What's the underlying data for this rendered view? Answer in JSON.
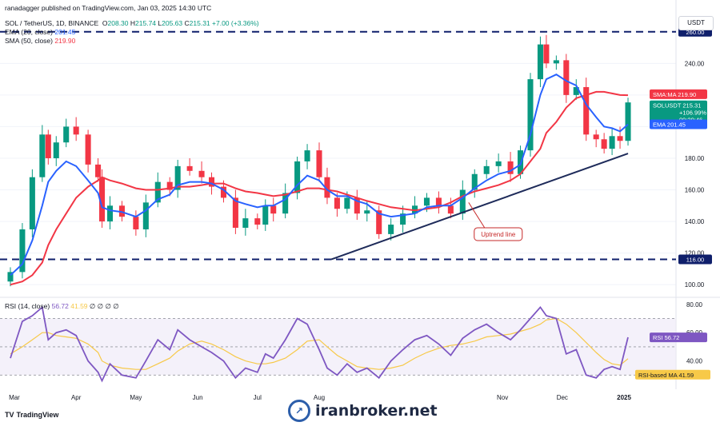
{
  "header": {
    "published": "ranadagger published on TradingView.com, Jan 03, 2025 14:30 UTC",
    "symbol": "SOL / TetherUS, 1D, BINANCE",
    "ohlc_o_label": "O",
    "ohlc_o": "208.30",
    "ohlc_h_label": "H",
    "ohlc_h": "215.74",
    "ohlc_l_label": "L",
    "ohlc_l": "205.63",
    "ohlc_c_label": "C",
    "ohlc_c": "215.31",
    "change": "+7.00 (+3.36%)",
    "ema_label": "EMA (20, close)",
    "ema_value": "201.45",
    "sma_label": "SMA (50, close)",
    "sma_value": "219.90",
    "rsi_label": "RSI (14, close)",
    "rsi_value": "56.72",
    "rsi_ma_value": "41.59",
    "rsi_rest": "∅ ∅ ∅ ∅"
  },
  "currency_badge": "USDT",
  "branding": {
    "tradingview": "TradingView",
    "watermark": "iranbroker.net"
  },
  "colors": {
    "up": "#089981",
    "down": "#f23645",
    "ema": "#2962ff",
    "sma": "#f23645",
    "rsi": "#7e57c2",
    "trendline": "#1e2b5a",
    "level": "#0f1f6b"
  },
  "annotations": {
    "uptrend": "Uptrend line"
  },
  "tags": {
    "sma": {
      "label": "SMA:MA",
      "value": "219.90"
    },
    "price": {
      "label": "SOLUSDT",
      "value": "215.31",
      "pct": "+106.99%",
      "timer": "09:29:46"
    },
    "ema": {
      "label": "EMA",
      "value": "201.45"
    },
    "rsi": {
      "label": "RSI",
      "value": "56.72"
    },
    "rsi_ma": {
      "label": "RSI-based MA",
      "value": "41.59"
    },
    "level_high": "260.00",
    "level_low": "116.00"
  },
  "chart_data": [
    {
      "type": "candlestick",
      "title": "SOL / TetherUS, 1D, BINANCE",
      "x_tick_labels": [
        "Mar",
        "Apr",
        "May",
        "Jun",
        "Jul",
        "Aug",
        "Nov",
        "Dec",
        "2025"
      ],
      "y_tick_labels": [
        "100.00",
        "120.00",
        "140.00",
        "160.00",
        "180.00",
        "200.00",
        "220.00",
        "240.00",
        "260.00"
      ],
      "ylim": [
        92,
        270
      ],
      "x": [
        "2024-02-28",
        "2024-03-05",
        "2024-03-10",
        "2024-03-15",
        "2024-03-18",
        "2024-03-22",
        "2024-03-27",
        "2024-04-01",
        "2024-04-07",
        "2024-04-12",
        "2024-04-14",
        "2024-04-18",
        "2024-04-24",
        "2024-05-01",
        "2024-05-06",
        "2024-05-12",
        "2024-05-18",
        "2024-05-22",
        "2024-05-28",
        "2024-06-03",
        "2024-06-08",
        "2024-06-14",
        "2024-06-20",
        "2024-06-25",
        "2024-07-01",
        "2024-07-05",
        "2024-07-09",
        "2024-07-15",
        "2024-07-21",
        "2024-07-26",
        "2024-08-01",
        "2024-08-05",
        "2024-08-10",
        "2024-08-15",
        "2024-08-20",
        "2024-08-25",
        "2024-08-31",
        "2024-09-06",
        "2024-09-12",
        "2024-09-18",
        "2024-09-24",
        "2024-09-30",
        "2024-10-06",
        "2024-10-12",
        "2024-10-18",
        "2024-10-24",
        "2024-10-30",
        "2024-11-05",
        "2024-11-10",
        "2024-11-15",
        "2024-11-20",
        "2024-11-23",
        "2024-11-28",
        "2024-12-03",
        "2024-12-08",
        "2024-12-13",
        "2024-12-18",
        "2024-12-22",
        "2024-12-26",
        "2024-12-30",
        "2025-01-03"
      ],
      "close": [
        108,
        135,
        168,
        195,
        180,
        190,
        200,
        195,
        176,
        168,
        140,
        150,
        143,
        135,
        152,
        165,
        160,
        175,
        172,
        168,
        162,
        155,
        136,
        142,
        138,
        150,
        145,
        158,
        178,
        185,
        168,
        155,
        148,
        155,
        145,
        147,
        132,
        138,
        145,
        150,
        155,
        150,
        145,
        160,
        170,
        175,
        178,
        170,
        185,
        230,
        252,
        240,
        242,
        220,
        225,
        195,
        192,
        186,
        194,
        191,
        215.31
      ],
      "sma50": [
        100,
        102,
        106,
        114,
        125,
        135,
        145,
        155,
        162,
        166,
        168,
        166,
        164,
        161,
        160,
        160,
        161,
        162,
        162,
        163,
        164,
        164,
        161,
        159,
        158,
        157,
        156,
        157,
        159,
        161,
        161,
        160,
        159,
        157,
        155,
        153,
        151,
        149,
        148,
        147,
        148,
        149,
        152,
        156,
        159,
        161,
        163,
        166,
        170,
        178,
        186,
        196,
        203,
        212,
        218,
        220,
        222,
        222,
        221,
        220,
        219.9
      ],
      "ema20": [
        106,
        113,
        128,
        150,
        165,
        172,
        178,
        175,
        166,
        158,
        149,
        147,
        146,
        143,
        147,
        154,
        157,
        163,
        165,
        165,
        164,
        160,
        153,
        151,
        149,
        150,
        150,
        154,
        163,
        169,
        166,
        160,
        156,
        156,
        153,
        151,
        145,
        143,
        144,
        145,
        149,
        150,
        150,
        155,
        161,
        166,
        170,
        172,
        176,
        195,
        220,
        230,
        233,
        229,
        226,
        214,
        206,
        200,
        199,
        197,
        201.45
      ],
      "levels": [
        {
          "value": 260.0,
          "label": "260.00"
        },
        {
          "value": 116.0,
          "label": "116.00"
        }
      ],
      "trendline": {
        "from": {
          "x": "2024-08-07",
          "y": 116
        },
        "to": {
          "x": "2025-01-03",
          "y": 183
        }
      }
    },
    {
      "type": "line",
      "title": "RSI (14, close)",
      "y_tick_labels": [
        "40.00",
        "60.00",
        "80.00"
      ],
      "ylim": [
        20,
        85
      ],
      "rsi": [
        42,
        68,
        72,
        78,
        55,
        60,
        62,
        58,
        40,
        32,
        26,
        38,
        30,
        28,
        40,
        55,
        48,
        62,
        55,
        50,
        46,
        40,
        28,
        35,
        32,
        45,
        42,
        55,
        70,
        66,
        48,
        35,
        30,
        38,
        32,
        35,
        28,
        40,
        48,
        55,
        58,
        52,
        44,
        56,
        62,
        66,
        60,
        55,
        62,
        70,
        78,
        72,
        70,
        45,
        48,
        30,
        28,
        34,
        36,
        34,
        56.72
      ],
      "rsi_ma": [
        45,
        50,
        55,
        60,
        60,
        58,
        57,
        56,
        52,
        46,
        40,
        37,
        35,
        34,
        34,
        38,
        42,
        47,
        52,
        54,
        52,
        48,
        43,
        40,
        38,
        38,
        39,
        42,
        48,
        54,
        55,
        50,
        44,
        40,
        36,
        35,
        34,
        35,
        37,
        42,
        46,
        49,
        51,
        52,
        54,
        57,
        58,
        59,
        61,
        63,
        66,
        69,
        70,
        66,
        60,
        53,
        46,
        41,
        38,
        37,
        41.59
      ]
    }
  ]
}
